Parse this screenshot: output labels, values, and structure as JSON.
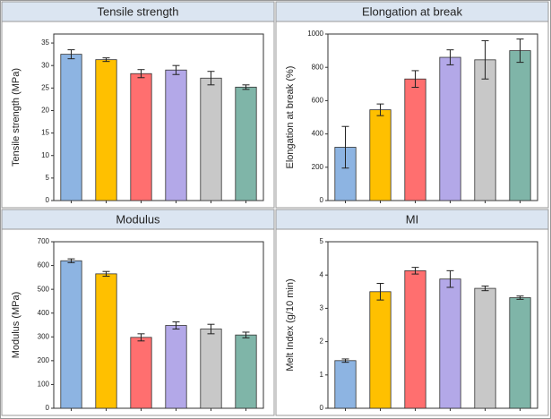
{
  "chart_data": [
    {
      "type": "bar",
      "title": "Tensile strength",
      "y_label": "Tensile strength (MPa)",
      "values": [
        32.5,
        31.3,
        28.2,
        29,
        27.2,
        25.2
      ],
      "errors": [
        1,
        0.4,
        0.9,
        1,
        1.5,
        0.5
      ],
      "colors": [
        "#8db4e2",
        "#ffc000",
        "#ff6f6f",
        "#b3a8e8",
        "#c8c8c8",
        "#7fb5a8"
      ],
      "ylim": [
        0,
        37
      ],
      "yticks": [
        0,
        5,
        10,
        15,
        20,
        25,
        30,
        35
      ]
    },
    {
      "type": "bar",
      "title": "Elongation at break",
      "y_label": "Elongation at break (%)",
      "values": [
        320,
        545,
        730,
        860,
        845,
        900
      ],
      "errors": [
        125,
        35,
        50,
        45,
        115,
        70
      ],
      "colors": [
        "#8db4e2",
        "#ffc000",
        "#ff6f6f",
        "#b3a8e8",
        "#c8c8c8",
        "#7fb5a8"
      ],
      "ylim": [
        0,
        1000
      ],
      "yticks": [
        0,
        200,
        400,
        600,
        800,
        1000
      ]
    },
    {
      "type": "bar",
      "title": "Modulus",
      "y_label": "Modulus (MPa)",
      "values": [
        620,
        565,
        298,
        348,
        333,
        308
      ],
      "errors": [
        8,
        10,
        15,
        15,
        20,
        12
      ],
      "colors": [
        "#8db4e2",
        "#ffc000",
        "#ff6f6f",
        "#b3a8e8",
        "#c8c8c8",
        "#7fb5a8"
      ],
      "ylim": [
        0,
        700
      ],
      "yticks": [
        0,
        100,
        200,
        300,
        400,
        500,
        600,
        700
      ]
    },
    {
      "type": "bar",
      "title": "MI",
      "y_label": "Melt Index (g/10 min)",
      "values": [
        1.43,
        3.5,
        4.13,
        3.88,
        3.6,
        3.32
      ],
      "errors": [
        0.05,
        0.25,
        0.1,
        0.25,
        0.07,
        0.05
      ],
      "colors": [
        "#8db4e2",
        "#ffc000",
        "#ff6f6f",
        "#b3a8e8",
        "#c8c8c8",
        "#7fb5a8"
      ],
      "ylim": [
        0,
        5
      ],
      "yticks": [
        0,
        1,
        2,
        3,
        4,
        5
      ]
    }
  ]
}
